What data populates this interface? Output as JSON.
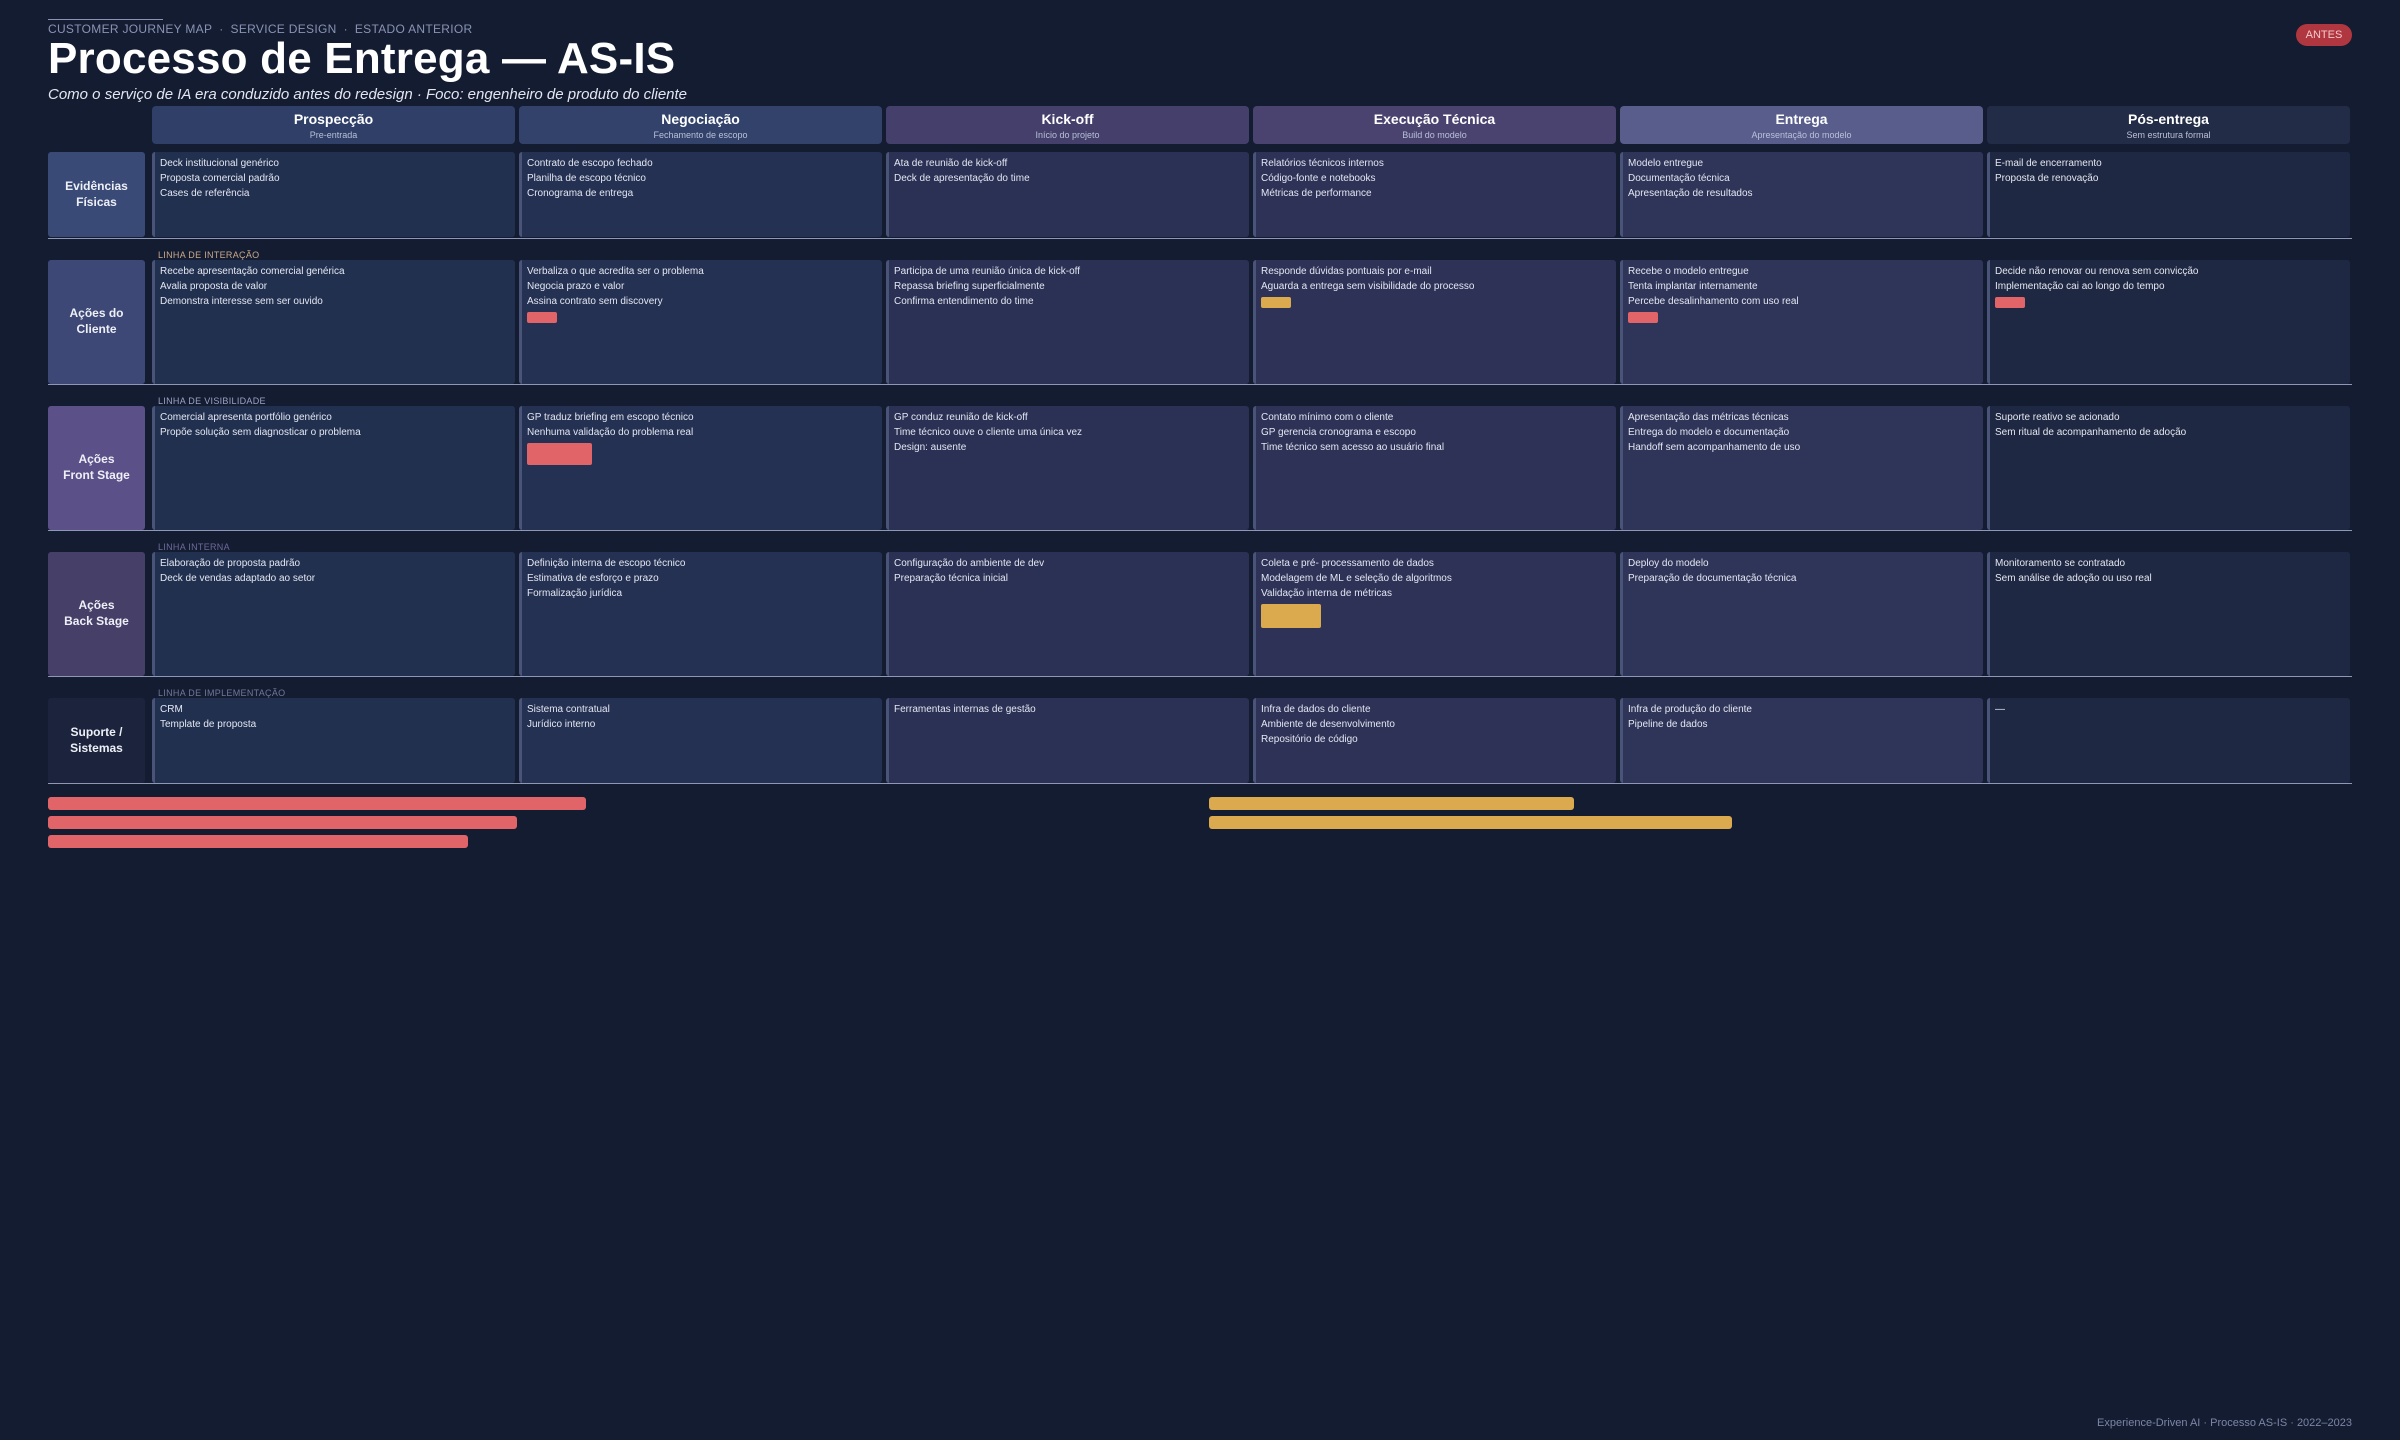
{
  "header": {
    "kicker": [
      "CUSTOMER JOURNEY MAP",
      "SERVICE DESIGN",
      "ESTADO ANTERIOR"
    ],
    "title": "Processo de Entrega — AS-IS",
    "subtitle": "Como o serviço de IA era conduzido antes do redesign · Foco: engenheiro de produto do cliente",
    "badge": "ANTES"
  },
  "phases": [
    {
      "name": "Prospecção",
      "sub": "Pre-entrada",
      "color": "#2f3f68"
    },
    {
      "name": "Negociação",
      "sub": "Fechamento de escopo",
      "color": "#33426b"
    },
    {
      "name": "Kick-off",
      "sub": "Início do projeto",
      "color": "#443f6b"
    },
    {
      "name": "Execução\nTécnica",
      "sub": "Build do modelo",
      "color": "#4a4370"
    },
    {
      "name": "Entrega",
      "sub": "Apresentação do modelo",
      "color": "#585d8c"
    },
    {
      "name": "Pós-entrega",
      "sub": "Sem estrutura formal",
      "color": "#232c47"
    }
  ],
  "rows": [
    {
      "label": "Evidências\nFísicas",
      "label_color": "#3a4a76",
      "cells": [
        [
          "Deck institucional genérico",
          "Proposta comercial padrão",
          "Cases de referência"
        ],
        [
          "Contrato de escopo fechado",
          "Planilha de escopo técnico",
          "Cronograma de entrega"
        ],
        [
          "Ata de reunião de kick-off",
          "Deck de apresentação do time"
        ],
        [
          "Relatórios técnicos internos",
          "Código-fonte e notebooks",
          "Métricas de performance"
        ],
        [
          "Modelo entregue",
          "Documentação técnica",
          "Apresentação de resultados"
        ],
        [
          "E-mail de encerramento",
          "Proposta de renovação"
        ]
      ]
    },
    {
      "label": "Ações do\nCliente",
      "label_color": "#3d4876",
      "line_label": "LINHA DE INTERAÇÃO",
      "line_label_color": "#c9a98c",
      "cells": [
        [
          "Recebe apresentação comercial genérica",
          "Avalia proposta de valor",
          "Demonstra interesse sem ser ouvido"
        ],
        [
          "Verbaliza o que acredita ser o problema",
          "Negocia prazo e valor",
          "Assina contrato sem discovery"
        ],
        [
          "Participa de uma reunião única de kick-off",
          "Repassa briefing superficialmente",
          "Confirma entendimento do time"
        ],
        [
          "Responde dúvidas pontuais por e-mail",
          "Aguarda a entrega sem visibilidade do processo"
        ],
        [
          "Recebe o modelo entregue",
          "Tenta implantar internamente",
          "Percebe desalinhamento com uso real"
        ],
        [
          "Decide não renovar ou renova sem convicção",
          "Implementação cai ao longo do tempo"
        ]
      ]
    },
    {
      "label": "Ações\nFront Stage",
      "label_color": "#5c5088",
      "line_label": "LINHA DE VISIBILIDADE",
      "line_label_color": "#9aa3c4",
      "cells": [
        [
          "Comercial apresenta portfólio genérico",
          "Propõe solução sem diagnosticar o problema"
        ],
        [
          "GP traduz briefing em escopo técnico",
          "Nenhuma validação do problema real"
        ],
        [
          "GP conduz reunião de kick-off",
          "Time técnico ouve o cliente uma única vez",
          "Design: ausente"
        ],
        [
          "Contato mínimo com o cliente",
          "GP gerencia cronograma e escopo",
          "Time técnico sem acesso ao usuário final"
        ],
        [
          "Apresentação das métricas técnicas",
          "Entrega do modelo e documentação",
          "Handoff sem acompanhamento de uso"
        ],
        [
          "Suporte reativo se acionado",
          "Sem ritual de acompanhamento de adoção"
        ]
      ]
    },
    {
      "label": "Ações\nBack Stage",
      "label_color": "#463f68",
      "line_label": "LINHA INTERNA",
      "line_label_color": "#6e6a9a",
      "cells": [
        [
          "Elaboração de proposta padrão",
          "Deck de vendas adaptado ao setor"
        ],
        [
          "Definição interna de escopo técnico",
          "Estimativa de esforço e prazo",
          "Formalização jurídica"
        ],
        [
          "Configuração do ambiente de dev",
          "Preparação técnica inicial"
        ],
        [
          "Coleta e pré- processamento de dados",
          "Modelagem de ML e seleção de algoritmos",
          "Validação interna de métricas"
        ],
        [
          "Deploy do modelo",
          "Preparação de documentação técnica"
        ],
        [
          "Monitoramento se contratado",
          "Sem análise de adoção ou uso real"
        ]
      ]
    },
    {
      "label": "Suporte /\nSistemas",
      "label_color": "#1b243c",
      "line_label": "LINHA DE IMPLEMENTAÇÃO",
      "line_label_color": "#6f7898",
      "cells": [
        [
          "CRM",
          "Template de proposta"
        ],
        [
          "Sistema contratual",
          "Jurídico interno"
        ],
        [
          "Ferramentas internas de gestão"
        ],
        [
          "Infra de dados do cliente",
          "Ambiente de desenvolvimento",
          "Repositório de código"
        ],
        [
          "Infra de produção do cliente",
          "Pipeline de dados"
        ],
        [
          "—"
        ]
      ]
    }
  ],
  "colors": {
    "red": "#e06468",
    "amber": "#dba94e"
  },
  "footer": "Experience-Driven AI · Processo AS-IS · 2022–2023"
}
